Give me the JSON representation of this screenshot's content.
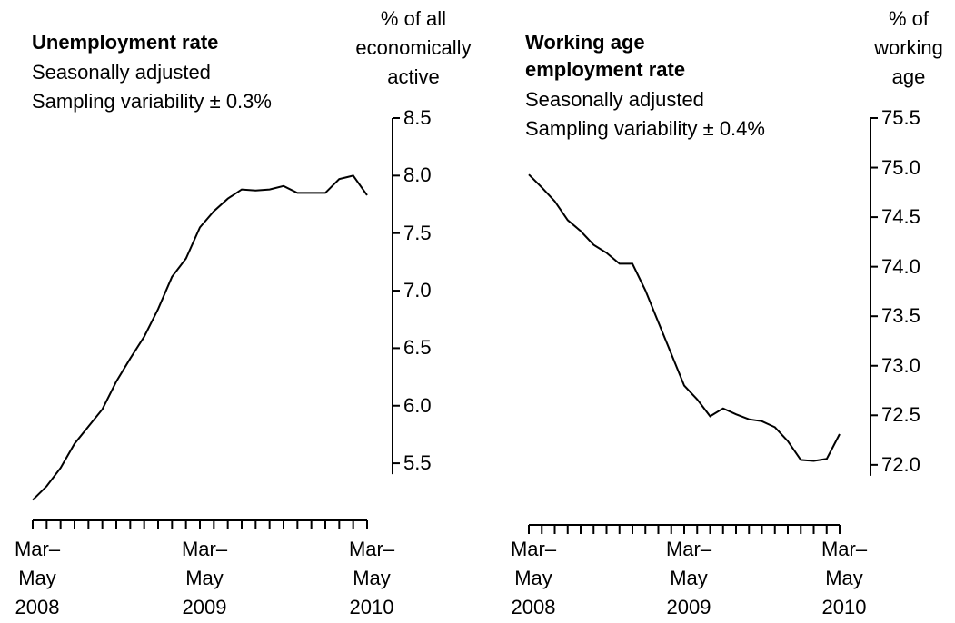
{
  "chart_data": [
    {
      "type": "line",
      "title": "Unemployment rate",
      "subtitle": "Seasonally adjusted",
      "note": "Sampling variability ± 0.3%",
      "y_label": "% of all\neconomically\nactive",
      "categories": [
        "Mar–\nMay\n2008",
        null,
        null,
        null,
        null,
        null,
        null,
        null,
        null,
        null,
        null,
        null,
        "Mar–\nMay\n2009",
        null,
        null,
        null,
        null,
        null,
        null,
        null,
        null,
        null,
        null,
        null,
        "Mar–\nMay\n2010"
      ],
      "values": [
        5.18,
        5.3,
        5.46,
        5.67,
        5.82,
        5.97,
        6.21,
        6.41,
        6.6,
        6.84,
        7.12,
        7.28,
        7.55,
        7.69,
        7.8,
        7.88,
        7.87,
        7.88,
        7.91,
        7.85,
        7.85,
        7.85,
        7.97,
        8.0,
        7.83
      ],
      "color": "#000000",
      "ylim": [
        5.1,
        8.5
      ],
      "yticks": [
        5.5,
        {
          "value": 6,
          "label": "6.0"
        },
        6.5,
        {
          "value": 7,
          "label": "7.0"
        },
        7.5,
        {
          "value": 8,
          "label": "8.0"
        },
        8.5
      ]
    },
    {
      "type": "line",
      "title": "Working age\nemployment rate",
      "subtitle": "Seasonally adjusted",
      "note": "Sampling variability ± 0.4%",
      "y_label": "% of\nworking\nage",
      "categories": [
        "Mar–\nMay\n2008",
        null,
        null,
        null,
        null,
        null,
        null,
        null,
        null,
        null,
        null,
        null,
        "Mar–\nMay\n2009",
        null,
        null,
        null,
        null,
        null,
        null,
        null,
        null,
        null,
        null,
        null,
        "Mar–\nMay\n2010"
      ],
      "values": [
        74.93,
        74.8,
        74.66,
        74.47,
        74.36,
        74.22,
        74.14,
        74.03,
        74.03,
        73.76,
        73.44,
        73.12,
        72.8,
        72.66,
        72.49,
        72.57,
        72.51,
        72.46,
        72.44,
        72.38,
        72.24,
        72.05,
        72.04,
        72.06,
        72.31
      ],
      "color": "#000000",
      "ylim": [
        71.9,
        75.5
      ],
      "yticks": [
        {
          "value": 72,
          "label": "72.0"
        },
        72.5,
        {
          "value": 73,
          "label": "73.0"
        },
        73.5,
        {
          "value": 74,
          "label": "74.0"
        },
        74.5,
        {
          "value": 75,
          "label": "75.0"
        },
        75.5
      ]
    }
  ]
}
